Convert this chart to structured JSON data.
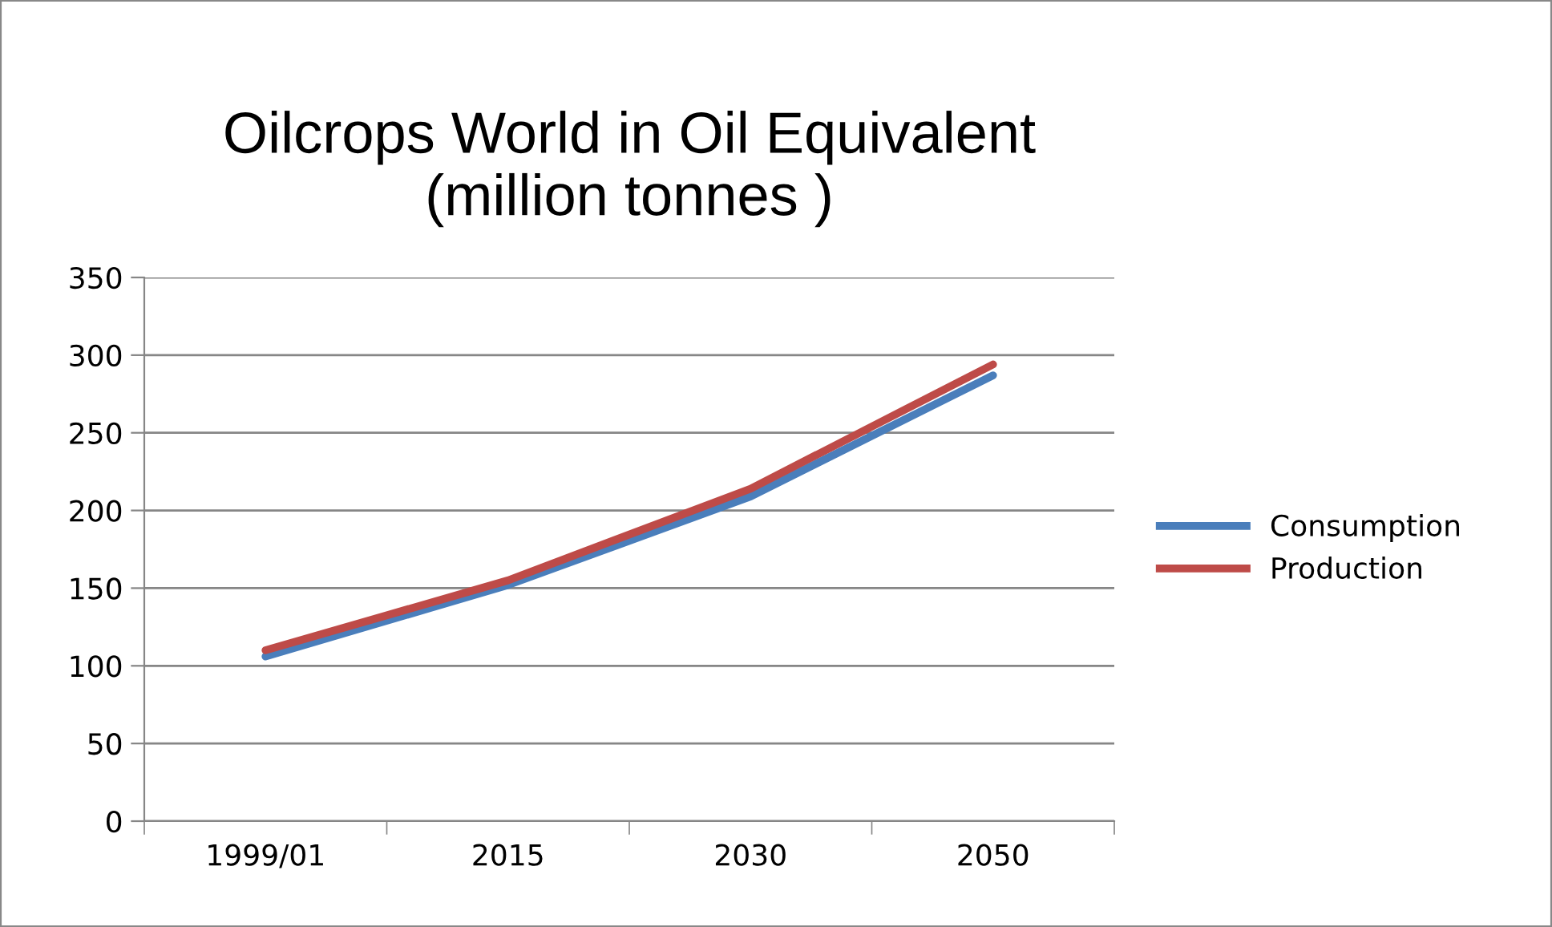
{
  "chart_data": {
    "type": "line",
    "title": "Oilcrops World in Oil Equivalent\n(million tonnes )",
    "categories": [
      "1999/01",
      "2015",
      "2030",
      "2050"
    ],
    "series": [
      {
        "name": "Consumption",
        "color": "#4a7ebb",
        "values": [
          106,
          152,
          209,
          287
        ]
      },
      {
        "name": "Production",
        "color": "#be4b48",
        "values": [
          110,
          155,
          214,
          294
        ]
      }
    ],
    "ylim": [
      0,
      350
    ],
    "yticks": [
      0,
      50,
      100,
      150,
      200,
      250,
      300,
      350
    ],
    "grid": "y",
    "legend": "right",
    "marker": "none",
    "line_style": "solid"
  }
}
